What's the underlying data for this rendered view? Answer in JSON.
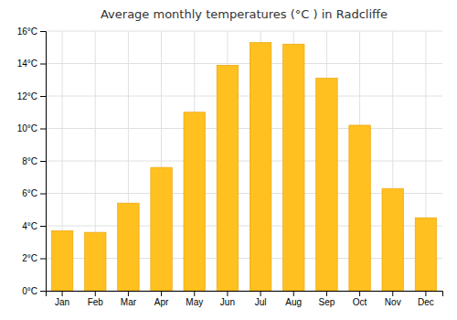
{
  "chart_data": {
    "type": "bar",
    "title": "Average monthly temperatures (°C ) in Radcliffe",
    "categories": [
      "Jan",
      "Feb",
      "Mar",
      "Apr",
      "May",
      "Jun",
      "Jul",
      "Aug",
      "Sep",
      "Oct",
      "Nov",
      "Dec"
    ],
    "values": [
      3.7,
      3.6,
      5.4,
      7.6,
      11.0,
      13.9,
      15.3,
      15.2,
      13.1,
      10.2,
      6.3,
      4.5
    ],
    "color": "#FFC020",
    "ylim": [
      0,
      16
    ],
    "yticks": [
      {
        "value": 0,
        "label": "0°C"
      },
      {
        "value": 2,
        "label": "2°C"
      },
      {
        "value": 4,
        "label": "4°C"
      },
      {
        "value": 6,
        "label": "6°C"
      },
      {
        "value": 8,
        "label": "8°C"
      },
      {
        "value": 10,
        "label": "10°C"
      },
      {
        "value": 12,
        "label": "12°C"
      },
      {
        "value": 14,
        "label": "14°C"
      },
      {
        "value": 16,
        "label": "16°C"
      }
    ],
    "grid": true
  }
}
